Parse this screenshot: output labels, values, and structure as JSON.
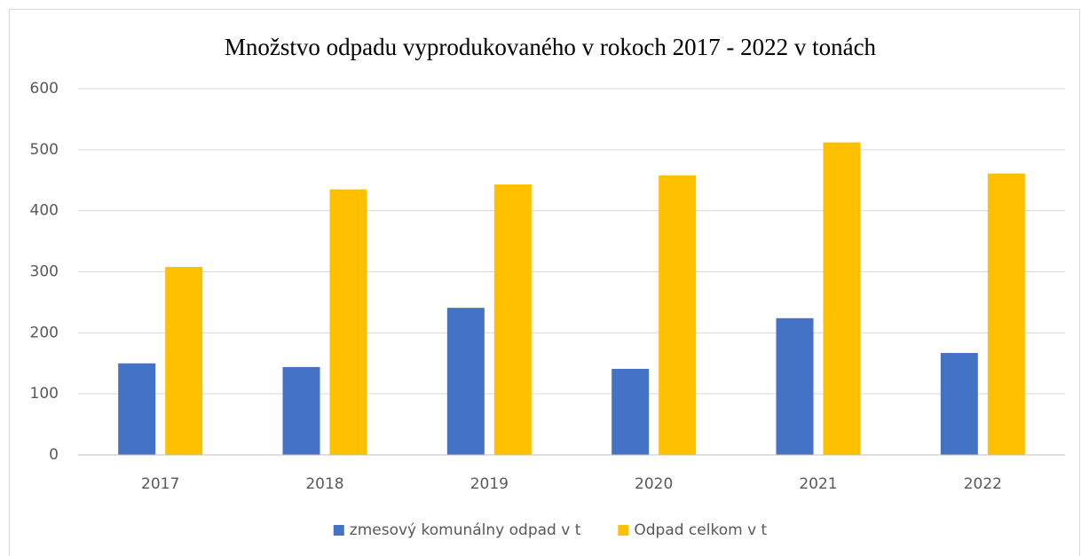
{
  "chart_data": {
    "type": "bar",
    "title": "Množstvo odpadu vyprodukovaného v rokoch 2017 - 2022  v tonách",
    "categories": [
      "2017",
      "2018",
      "2019",
      "2020",
      "2021",
      "2022"
    ],
    "series": [
      {
        "name": "zmesový komunálny odpad v t",
        "color": "#4472c4",
        "values": [
          150,
          144,
          241,
          141,
          224,
          167
        ]
      },
      {
        "name": "Odpad celkom v t",
        "color": "#ffc000",
        "values": [
          308,
          435,
          443,
          458,
          512,
          461
        ]
      }
    ],
    "ylim": [
      0,
      600
    ],
    "yticks": [
      0,
      100,
      200,
      300,
      400,
      500,
      600
    ],
    "grid": true,
    "legend": "bottom"
  }
}
